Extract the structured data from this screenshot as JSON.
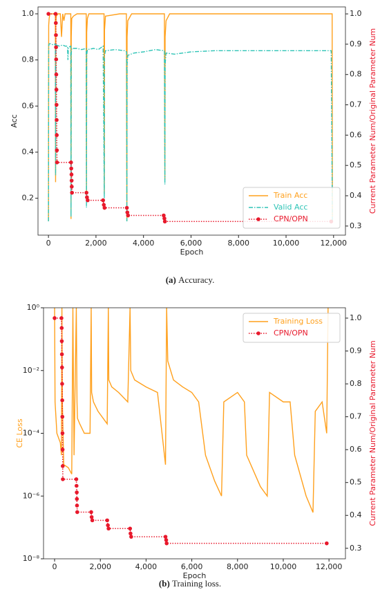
{
  "chart_data": [
    {
      "type": "line",
      "caption": {
        "label": "(a)",
        "text": "Accuracy."
      },
      "xlabel": "Epoch",
      "ylabel": "Acc",
      "y2label": "Current Parameter Num/Original Parameter Num",
      "y2label_color": "#e8192c",
      "xlim": [
        -440,
        12500
      ],
      "xticks": [
        0,
        {
          "value": 2000,
          "label": "2,000"
        },
        {
          "value": 4000,
          "label": "4,000"
        },
        {
          "value": 6000,
          "label": "6,000"
        },
        {
          "value": 8000,
          "label": "8,000"
        },
        {
          "value": 10000,
          "label": "10,000"
        },
        {
          "value": 12000,
          "label": "12,000"
        }
      ],
      "ylim": [
        0.04,
        1.03
      ],
      "yticks": [
        0.2,
        0.4,
        0.6,
        0.8,
        {
          "value": 1.0,
          "label": "1.0"
        }
      ],
      "y2lim": [
        0.27,
        1.023
      ],
      "y2ticks": [
        0.3,
        0.4,
        0.5,
        0.6,
        0.7,
        0.8,
        0.9,
        {
          "value": 1.0,
          "label": "1.0"
        }
      ],
      "legend": "lower right",
      "series": [
        {
          "name": "Train Acc",
          "color": "#ffa01c",
          "linestyle": "solid",
          "x": [
            0,
            10,
            30,
            60,
            200,
            290,
            300,
            310,
            330,
            400,
            500,
            550,
            600,
            650,
            700,
            900,
            940,
            950,
            960,
            980,
            1050,
            1200,
            1500,
            1590,
            1600,
            1610,
            1640,
            1700,
            2000,
            2300,
            2340,
            2350,
            2360,
            2400,
            3000,
            3280,
            3300,
            3310,
            3340,
            3500,
            4500,
            4880,
            4900,
            4910,
            4950,
            5100,
            8000,
            11000,
            11900,
            11940,
            11950
          ],
          "values": [
            0.1,
            0.95,
            0.98,
            1.0,
            1.0,
            1.0,
            0.27,
            0.95,
            0.99,
            1.0,
            1.0,
            0.9,
            1.0,
            0.97,
            1.0,
            1.0,
            1.0,
            0.11,
            0.9,
            0.98,
            0.99,
            1.0,
            1.0,
            1.0,
            0.2,
            0.92,
            0.98,
            1.0,
            1.0,
            1.0,
            1.0,
            0.22,
            0.93,
            0.99,
            1.0,
            1.0,
            0.1,
            0.9,
            0.97,
            1.0,
            1.0,
            1.0,
            0.28,
            0.9,
            0.97,
            1.0,
            1.0,
            1.0,
            1.0,
            1.0,
            0.12
          ]
        },
        {
          "name": "Valid Acc",
          "color": "#2ec4b6",
          "linestyle": "dashdot",
          "x": [
            0,
            10,
            30,
            100,
            200,
            290,
            300,
            310,
            330,
            450,
            600,
            700,
            800,
            820,
            840,
            940,
            950,
            960,
            980,
            1200,
            1400,
            1590,
            1600,
            1610,
            1640,
            1900,
            2100,
            2300,
            2350,
            2360,
            2400,
            2800,
            3200,
            3290,
            3300,
            3310,
            3340,
            3600,
            4000,
            4500,
            4880,
            4900,
            4910,
            4950,
            5300,
            6000,
            7000,
            8000,
            9000,
            10000,
            11000,
            11900,
            11950
          ],
          "values": [
            0.1,
            0.86,
            0.87,
            0.87,
            0.865,
            0.87,
            0.3,
            0.85,
            0.865,
            0.86,
            0.865,
            0.86,
            0.86,
            0.8,
            0.855,
            0.86,
            0.12,
            0.83,
            0.85,
            0.85,
            0.845,
            0.85,
            0.16,
            0.82,
            0.845,
            0.85,
            0.845,
            0.86,
            0.2,
            0.82,
            0.84,
            0.845,
            0.84,
            0.835,
            0.1,
            0.78,
            0.82,
            0.83,
            0.835,
            0.845,
            0.84,
            0.26,
            0.78,
            0.83,
            0.825,
            0.835,
            0.84,
            0.84,
            0.84,
            0.84,
            0.84,
            0.84,
            0.1
          ]
        },
        {
          "name": "CPN/OPN",
          "color": "#e8192c",
          "linestyle": "dotted",
          "marker": "o",
          "axis": "y2",
          "x": [
            0,
            300,
            310,
            315,
            320,
            325,
            330,
            335,
            340,
            345,
            350,
            355,
            360,
            950,
            960,
            970,
            975,
            980,
            990,
            1600,
            1620,
            1650,
            2300,
            2330,
            2360,
            3300,
            3320,
            3350,
            4850,
            4880,
            4900,
            11900
          ],
          "values": [
            1.0,
            1.0,
            0.97,
            0.93,
            0.89,
            0.85,
            0.8,
            0.75,
            0.7,
            0.65,
            0.6,
            0.55,
            0.51,
            0.51,
            0.49,
            0.47,
            0.45,
            0.43,
            0.41,
            0.41,
            0.395,
            0.385,
            0.385,
            0.37,
            0.36,
            0.36,
            0.345,
            0.335,
            0.335,
            0.325,
            0.315,
            0.315
          ]
        }
      ]
    },
    {
      "type": "line",
      "caption": {
        "label": "(b)",
        "text": "Training loss."
      },
      "xlabel": "Epoch",
      "ylabel": "CE Loss",
      "ylabel_color": "#ffa01c",
      "y2label": "Current Parameter Num/Original Parameter Num",
      "y2label_color": "#e8192c",
      "yscale": "log",
      "xlim": [
        -484,
        12720
      ],
      "xticks": [
        0,
        {
          "value": 2000,
          "label": "2,000"
        },
        {
          "value": 4000,
          "label": "4,000"
        },
        {
          "value": 6000,
          "label": "6,000"
        },
        {
          "value": 8000,
          "label": "8,000"
        },
        {
          "value": 10000,
          "label": "10,000"
        },
        {
          "value": 12000,
          "label": "12,000"
        }
      ],
      "ylim": [
        1e-08,
        1
      ],
      "yticks": [
        {
          "value": 1e-08,
          "label": "10⁻⁸"
        },
        {
          "value": 1e-06,
          "label": "10⁻⁶"
        },
        {
          "value": 0.0001,
          "label": "10⁻⁴"
        },
        {
          "value": 0.01,
          "label": "10⁻²"
        },
        {
          "value": 1,
          "label": "10⁰"
        }
      ],
      "y2lim": [
        0.268,
        1.0315
      ],
      "y2ticks": [
        0.3,
        0.4,
        0.5,
        0.6,
        0.7,
        0.8,
        0.9,
        {
          "value": 1.0,
          "label": "1.0"
        }
      ],
      "legend": "upper right",
      "series": [
        {
          "name": "Training Loss",
          "color": "#ffa01c",
          "linestyle": "solid",
          "x": [
            0,
            20,
            100,
            250,
            300,
            320,
            340,
            400,
            600,
            750,
            800,
            850,
            950,
            980,
            1000,
            1100,
            1300,
            1550,
            1600,
            1620,
            1700,
            1900,
            2300,
            2350,
            2370,
            2500,
            2800,
            3200,
            3300,
            3330,
            3500,
            4000,
            4500,
            4850,
            4900,
            4950,
            5200,
            5600,
            6000,
            6300,
            6600,
            7000,
            7300,
            7400,
            8000,
            8300,
            8400,
            9000,
            9300,
            9400,
            10000,
            10300,
            10500,
            11000,
            11300,
            11400,
            11700,
            11900,
            11960
          ],
          "values": [
            1,
            0.001,
            0.0001,
            5e-05,
            2e-05,
            1,
            0.001,
            1e-05,
            8e-06,
            5e-06,
            1,
            2e-05,
            1,
            0.001,
            0.0003,
            0.0002,
            0.0001,
            0.0001,
            1,
            0.002,
            0.001,
            0.0005,
            0.0002,
            1,
            0.005,
            0.003,
            0.002,
            0.001,
            1,
            0.01,
            0.005,
            0.003,
            0.002,
            1e-05,
            1,
            0.02,
            0.005,
            0.003,
            0.002,
            0.001,
            2e-05,
            3e-06,
            1e-06,
            0.001,
            0.002,
            0.001,
            2e-05,
            2e-06,
            1e-06,
            0.002,
            0.001,
            0.001,
            2e-05,
            1e-06,
            3e-07,
            0.0005,
            0.001,
            0.0001,
            1
          ]
        },
        {
          "name": "CPN/OPN",
          "color": "#e8192c",
          "linestyle": "dotted",
          "marker": "o",
          "axis": "y2",
          "x": [
            0,
            300,
            310,
            315,
            320,
            325,
            330,
            335,
            340,
            345,
            350,
            355,
            360,
            950,
            960,
            970,
            975,
            980,
            990,
            1600,
            1620,
            1650,
            2300,
            2330,
            2360,
            3300,
            3320,
            3350,
            4850,
            4880,
            4900,
            11900
          ],
          "values": [
            1.0,
            1.0,
            0.97,
            0.93,
            0.89,
            0.85,
            0.8,
            0.75,
            0.7,
            0.65,
            0.6,
            0.55,
            0.51,
            0.51,
            0.49,
            0.47,
            0.45,
            0.43,
            0.41,
            0.41,
            0.395,
            0.385,
            0.385,
            0.37,
            0.36,
            0.36,
            0.345,
            0.335,
            0.335,
            0.325,
            0.315,
            0.315
          ]
        }
      ]
    }
  ]
}
